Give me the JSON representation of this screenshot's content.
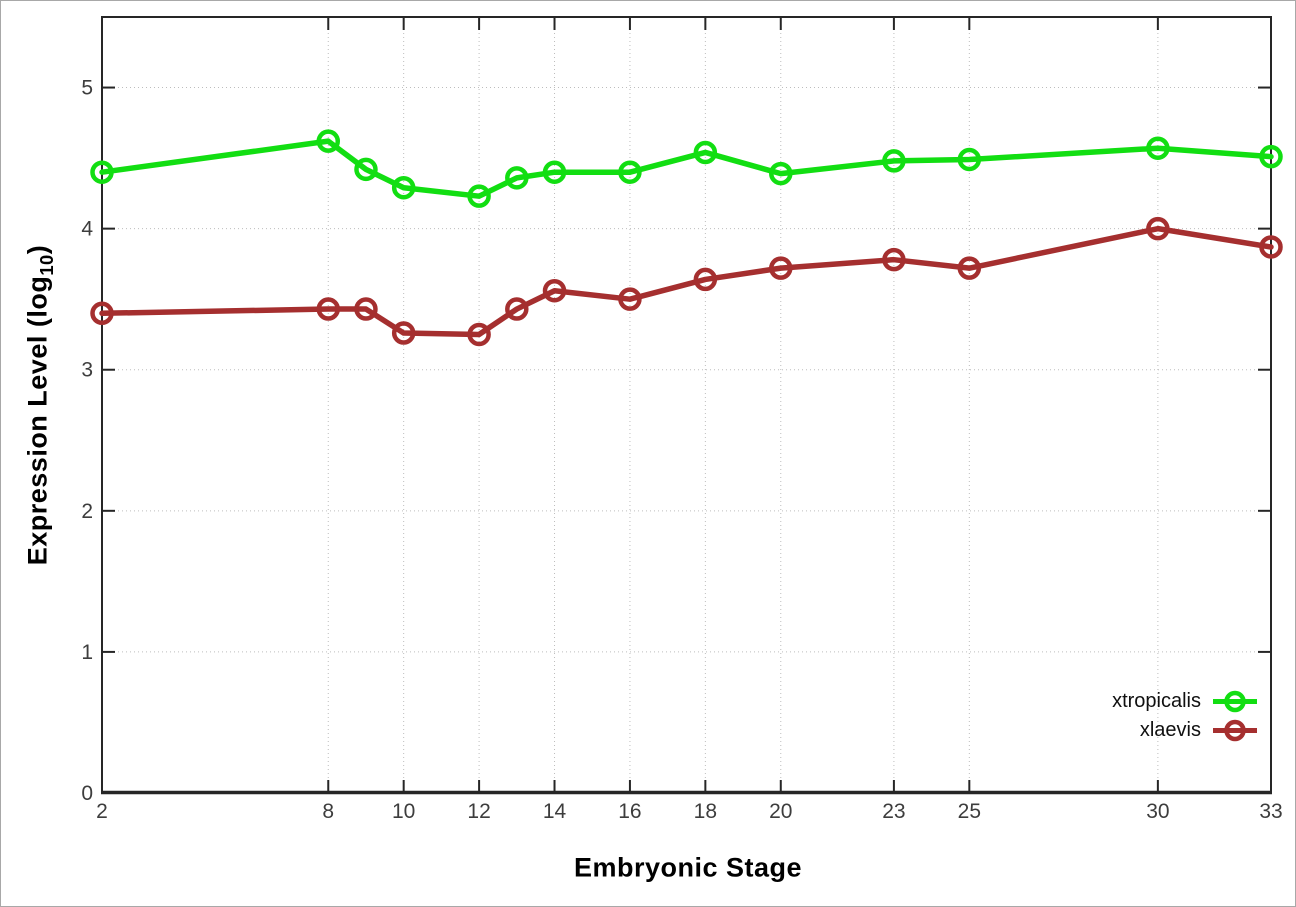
{
  "chart_data": {
    "type": "line",
    "title": "",
    "xlabel": "Embryonic Stage",
    "ylabel": "Expression Level (log10)",
    "ylabel_parts": {
      "main": "Expression Level (log",
      "sub": "10",
      "end": ")"
    },
    "xlim": [
      2,
      33
    ],
    "ylim": [
      0,
      5.5
    ],
    "x_ticks": [
      2,
      8,
      10,
      12,
      14,
      16,
      18,
      20,
      23,
      25,
      30,
      33
    ],
    "y_ticks": [
      0,
      1,
      2,
      3,
      4,
      5
    ],
    "grid": true,
    "legend_position": "inside-bottom-right",
    "x": [
      2,
      8,
      9,
      10,
      12,
      13,
      14,
      16,
      18,
      20,
      23,
      25,
      30,
      33
    ],
    "series": [
      {
        "name": "xtropicalis",
        "color": "#12DE12",
        "marker": "open-circle",
        "values": [
          4.4,
          4.62,
          4.42,
          4.29,
          4.23,
          4.36,
          4.4,
          4.4,
          4.54,
          4.39,
          4.48,
          4.49,
          4.57,
          4.51
        ]
      },
      {
        "name": "xlaevis",
        "color": "#A52F2F",
        "marker": "open-circle",
        "values": [
          3.4,
          3.43,
          3.43,
          3.26,
          3.25,
          3.43,
          3.56,
          3.5,
          3.64,
          3.72,
          3.78,
          3.72,
          4.0,
          3.87
        ]
      }
    ]
  },
  "figure": {
    "background": "#ffffff",
    "frame_border_color": "#a8a8a8",
    "axis_color": "#262626",
    "grid_color": "#bdbdbd",
    "tick_label_color": "#3d3d3d"
  }
}
